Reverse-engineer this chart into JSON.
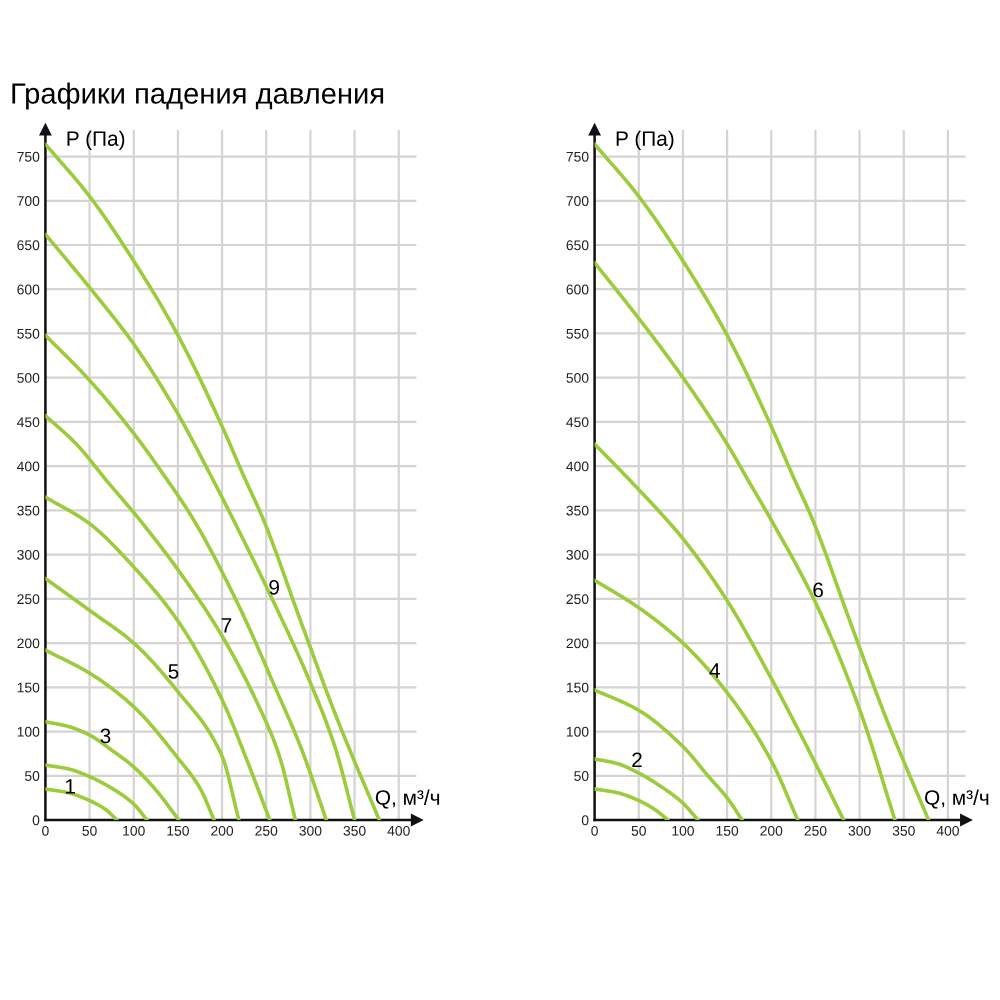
{
  "chart_data": [
    {
      "type": "line",
      "title": "Графики падения давления",
      "xlabel": "Q, м³/ч",
      "ylabel": "P (Па)",
      "xlim": [
        0,
        420
      ],
      "ylim": [
        0,
        780
      ],
      "xticks": [
        0,
        50,
        100,
        150,
        200,
        250,
        300,
        350,
        400
      ],
      "yticks": [
        0,
        50,
        100,
        150,
        200,
        250,
        300,
        350,
        400,
        450,
        500,
        550,
        600,
        650,
        700,
        750
      ],
      "grid": true,
      "series": [
        {
          "color": "#9ccb3b",
          "x": [
            0,
            25,
            50,
            68,
            81
          ],
          "values": [
            35,
            31,
            22,
            12,
            0
          ]
        },
        {
          "color": "#9ccb3b",
          "x": [
            0,
            25,
            50,
            75,
            100,
            115
          ],
          "values": [
            62,
            58,
            49,
            36,
            18,
            0
          ]
        },
        {
          "color": "#9ccb3b",
          "x": [
            0,
            25,
            50,
            75,
            100,
            125,
            151
          ],
          "values": [
            111,
            106,
            96,
            79,
            60,
            34,
            0
          ]
        },
        {
          "color": "#9ccb3b",
          "x": [
            0,
            50,
            100,
            150,
            175,
            191
          ],
          "values": [
            192,
            166,
            128,
            70,
            36,
            0
          ]
        },
        {
          "color": "#9ccb3b",
          "x": [
            0,
            50,
            100,
            150,
            200,
            219
          ],
          "values": [
            273,
            237,
            200,
            145,
            72,
            0
          ]
        },
        {
          "color": "#9ccb3b",
          "x": [
            0,
            50,
            100,
            150,
            200,
            228,
            254
          ],
          "values": [
            365,
            335,
            286,
            225,
            136,
            68,
            0
          ]
        },
        {
          "color": "#9ccb3b",
          "x": [
            0,
            35,
            69,
            107,
            150,
            200,
            240,
            265,
            283
          ],
          "values": [
            457,
            425,
            384,
            339,
            283,
            208,
            132,
            72,
            0
          ]
        },
        {
          "color": "#9ccb3b",
          "x": [
            0,
            50,
            100,
            134,
            168,
            220,
            260,
            290,
            318
          ],
          "values": [
            548,
            497,
            437,
            390,
            339,
            240,
            150,
            80,
            0
          ]
        },
        {
          "color": "#9ccb3b",
          "x": [
            0,
            50,
            100,
            150,
            190,
            213,
            260,
            300,
            328,
            350
          ],
          "values": [
            662,
            602,
            538,
            459,
            384,
            339,
            243,
            155,
            82,
            0
          ]
        },
        {
          "color": "#9ccb3b",
          "x": [
            0,
            50,
            100,
            150,
            200,
            224,
            247,
            290,
            330,
            378
          ],
          "values": [
            764,
            705,
            632,
            548,
            445,
            390,
            339,
            222,
            115,
            0
          ]
        }
      ],
      "annotations": [
        {
          "text": "1",
          "x": 28,
          "y": 36
        },
        {
          "text": "3",
          "x": 68,
          "y": 93
        },
        {
          "text": "5",
          "x": 145,
          "y": 166
        },
        {
          "text": "7",
          "x": 205,
          "y": 218
        },
        {
          "text": "9",
          "x": 259,
          "y": 261
        }
      ]
    },
    {
      "type": "line",
      "xlabel": "Q, м³/ч",
      "ylabel": "P (Па)",
      "xlim": [
        0,
        420
      ],
      "ylim": [
        0,
        780
      ],
      "xticks": [
        0,
        50,
        100,
        150,
        200,
        250,
        300,
        350,
        400
      ],
      "yticks": [
        0,
        50,
        100,
        150,
        200,
        250,
        300,
        350,
        400,
        450,
        500,
        550,
        600,
        650,
        700,
        750
      ],
      "grid": true,
      "series": [
        {
          "color": "#9ccb3b",
          "x": [
            0,
            25,
            50,
            68,
            83
          ],
          "values": [
            35,
            31,
            22,
            12,
            0
          ]
        },
        {
          "color": "#9ccb3b",
          "x": [
            0,
            25,
            50,
            75,
            100,
            117
          ],
          "values": [
            69,
            64,
            53,
            38,
            19,
            0
          ]
        },
        {
          "color": "#9ccb3b",
          "x": [
            0,
            50,
            100,
            130,
            150,
            167
          ],
          "values": [
            147,
            124,
            83,
            48,
            25,
            0
          ]
        },
        {
          "color": "#9ccb3b",
          "x": [
            0,
            50,
            100,
            150,
            200,
            230
          ],
          "values": [
            271,
            240,
            200,
            144,
            67,
            0
          ]
        },
        {
          "color": "#9ccb3b",
          "x": [
            0,
            40,
            82,
            100,
            150,
            200,
            250,
            282
          ],
          "values": [
            425,
            384,
            339,
            318,
            248,
            160,
            64,
            0
          ]
        },
        {
          "color": "#9ccb3b",
          "x": [
            0,
            50,
            100,
            150,
            175,
            200,
            250,
            300,
            340
          ],
          "values": [
            630,
            567,
            500,
            425,
            382,
            339,
            246,
            125,
            0
          ]
        },
        {
          "color": "#9ccb3b",
          "x": [
            0,
            50,
            100,
            150,
            200,
            224,
            247,
            290,
            330,
            378
          ],
          "values": [
            764,
            705,
            632,
            548,
            445,
            390,
            339,
            222,
            115,
            0
          ]
        }
      ],
      "annotations": [
        {
          "text": "2",
          "x": 48,
          "y": 66
        },
        {
          "text": "4",
          "x": 136,
          "y": 167
        },
        {
          "text": "6",
          "x": 253,
          "y": 258
        }
      ]
    }
  ]
}
